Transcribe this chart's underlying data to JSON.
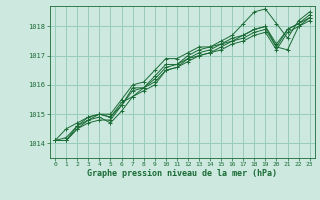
{
  "bg_color": "#cce8df",
  "grid_color": "#99ccbb",
  "line_color": "#1a6b35",
  "marker_color": "#1a6b35",
  "text_color": "#1a6b35",
  "xlabel": "Graphe pression niveau de la mer (hPa)",
  "ylim": [
    1013.5,
    1018.7
  ],
  "xlim": [
    -0.5,
    23.5
  ],
  "yticks": [
    1014,
    1015,
    1016,
    1017,
    1018
  ],
  "xticks": [
    0,
    1,
    2,
    3,
    4,
    5,
    6,
    7,
    8,
    9,
    10,
    11,
    12,
    13,
    14,
    15,
    16,
    17,
    18,
    19,
    20,
    21,
    22,
    23
  ],
  "series": [
    [
      1014.1,
      1014.1,
      1014.5,
      1014.7,
      1014.8,
      1014.8,
      1015.3,
      1015.8,
      1015.9,
      1016.1,
      1016.5,
      1016.6,
      1016.8,
      1017.0,
      1017.1,
      1017.2,
      1017.4,
      1017.5,
      1017.7,
      1017.8,
      1017.2,
      1017.8,
      1018.0,
      1018.2
    ],
    [
      1014.1,
      1014.1,
      1014.6,
      1014.8,
      1014.9,
      1014.7,
      1015.1,
      1015.6,
      1015.8,
      1016.0,
      1016.5,
      1016.6,
      1016.9,
      1017.0,
      1017.1,
      1017.3,
      1017.5,
      1017.6,
      1017.8,
      1017.9,
      1017.3,
      1017.9,
      1018.1,
      1018.3
    ],
    [
      1014.1,
      1014.1,
      1014.5,
      1014.8,
      1015.0,
      1014.9,
      1015.3,
      1015.9,
      1015.9,
      1016.2,
      1016.6,
      1016.7,
      1016.9,
      1017.1,
      1017.2,
      1017.4,
      1017.5,
      1017.7,
      1017.9,
      1018.0,
      1017.3,
      1017.2,
      1018.0,
      1018.3
    ],
    [
      1014.1,
      1014.5,
      1014.7,
      1014.9,
      1015.0,
      1015.0,
      1015.5,
      1016.0,
      1016.1,
      1016.5,
      1016.9,
      1016.9,
      1017.1,
      1017.3,
      1017.3,
      1017.5,
      1017.7,
      1018.1,
      1018.5,
      1018.6,
      1018.1,
      1017.6,
      1018.2,
      1018.5
    ],
    [
      1014.1,
      1014.2,
      1014.6,
      1014.9,
      1015.0,
      1014.9,
      1015.4,
      1015.6,
      1015.9,
      1016.3,
      1016.7,
      1016.7,
      1017.0,
      1017.2,
      1017.3,
      1017.4,
      1017.6,
      1017.7,
      1017.9,
      1018.0,
      1017.4,
      1017.9,
      1018.1,
      1018.4
    ]
  ]
}
